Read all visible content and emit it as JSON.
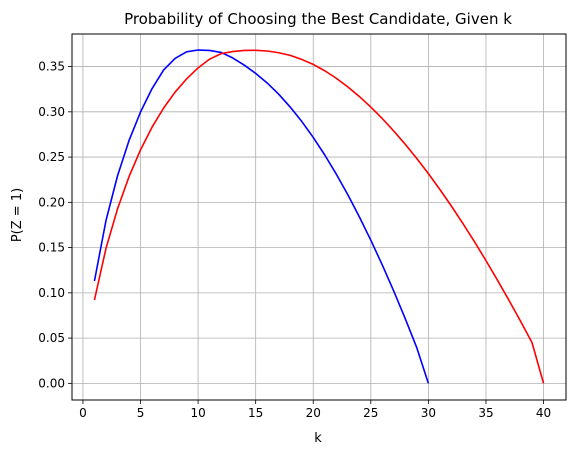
{
  "chart_data": {
    "type": "line",
    "title": "Probability of Choosing the Best Candidate, Given k",
    "xlabel": "k",
    "ylabel": "P(Z = 1)",
    "xlim": [
      -0.95,
      41.95
    ],
    "ylim": [
      -0.0184,
      0.386
    ],
    "xticks": [
      0,
      5,
      10,
      15,
      20,
      25,
      30,
      35,
      40
    ],
    "xtick_labels": [
      "0",
      "5",
      "10",
      "15",
      "20",
      "25",
      "30",
      "35",
      "40"
    ],
    "yticks": [
      0.0,
      0.05,
      0.1,
      0.15,
      0.2,
      0.25,
      0.3,
      0.35
    ],
    "ytick_labels": [
      "0.00",
      "0.05",
      "0.10",
      "0.15",
      "0.20",
      "0.25",
      "0.30",
      "0.35"
    ],
    "grid": true,
    "legend": false,
    "series": [
      {
        "color": "#0000ff",
        "points": [
          [
            1,
            0.1131
          ],
          [
            2,
            0.1798
          ],
          [
            3,
            0.2291
          ],
          [
            4,
            0.2682
          ],
          [
            5,
            0.2998
          ],
          [
            6,
            0.3256
          ],
          [
            7,
            0.3462
          ],
          [
            8,
            0.359
          ],
          [
            9,
            0.3663
          ],
          [
            10,
            0.3683
          ],
          [
            11,
            0.3678
          ],
          [
            12,
            0.3656
          ],
          [
            13,
            0.3596
          ],
          [
            14,
            0.3517
          ],
          [
            15,
            0.3425
          ],
          [
            16,
            0.3319
          ],
          [
            17,
            0.3195
          ],
          [
            18,
            0.3053
          ],
          [
            19,
            0.2894
          ],
          [
            20,
            0.2717
          ],
          [
            21,
            0.2523
          ],
          [
            22,
            0.2312
          ],
          [
            23,
            0.2085
          ],
          [
            24,
            0.1841
          ],
          [
            25,
            0.1582
          ],
          [
            26,
            0.1307
          ],
          [
            27,
            0.1017
          ],
          [
            28,
            0.0712
          ],
          [
            29,
            0.0391
          ],
          [
            30,
            0.0
          ]
        ]
      },
      {
        "color": "#ff0000",
        "points": [
          [
            1,
            0.0921
          ],
          [
            2,
            0.1491
          ],
          [
            3,
            0.1926
          ],
          [
            4,
            0.2283
          ],
          [
            5,
            0.258
          ],
          [
            6,
            0.283
          ],
          [
            7,
            0.3041
          ],
          [
            8,
            0.3217
          ],
          [
            9,
            0.3364
          ],
          [
            10,
            0.3486
          ],
          [
            11,
            0.3582
          ],
          [
            12,
            0.3643
          ],
          [
            13,
            0.3666
          ],
          [
            14,
            0.3678
          ],
          [
            15,
            0.368
          ],
          [
            16,
            0.3672
          ],
          [
            17,
            0.3653
          ],
          [
            18,
            0.3624
          ],
          [
            19,
            0.3579
          ],
          [
            20,
            0.3524
          ],
          [
            21,
            0.3454
          ],
          [
            22,
            0.3371
          ],
          [
            23,
            0.3276
          ],
          [
            24,
            0.317
          ],
          [
            25,
            0.3053
          ],
          [
            26,
            0.2925
          ],
          [
            27,
            0.2787
          ],
          [
            28,
            0.264
          ],
          [
            29,
            0.2483
          ],
          [
            30,
            0.2317
          ],
          [
            31,
            0.2142
          ],
          [
            32,
            0.1958
          ],
          [
            33,
            0.1765
          ],
          [
            34,
            0.1565
          ],
          [
            35,
            0.1356
          ],
          [
            36,
            0.114
          ],
          [
            37,
            0.0917
          ],
          [
            38,
            0.0687
          ],
          [
            39,
            0.045
          ],
          [
            40,
            0.0
          ]
        ]
      }
    ]
  }
}
